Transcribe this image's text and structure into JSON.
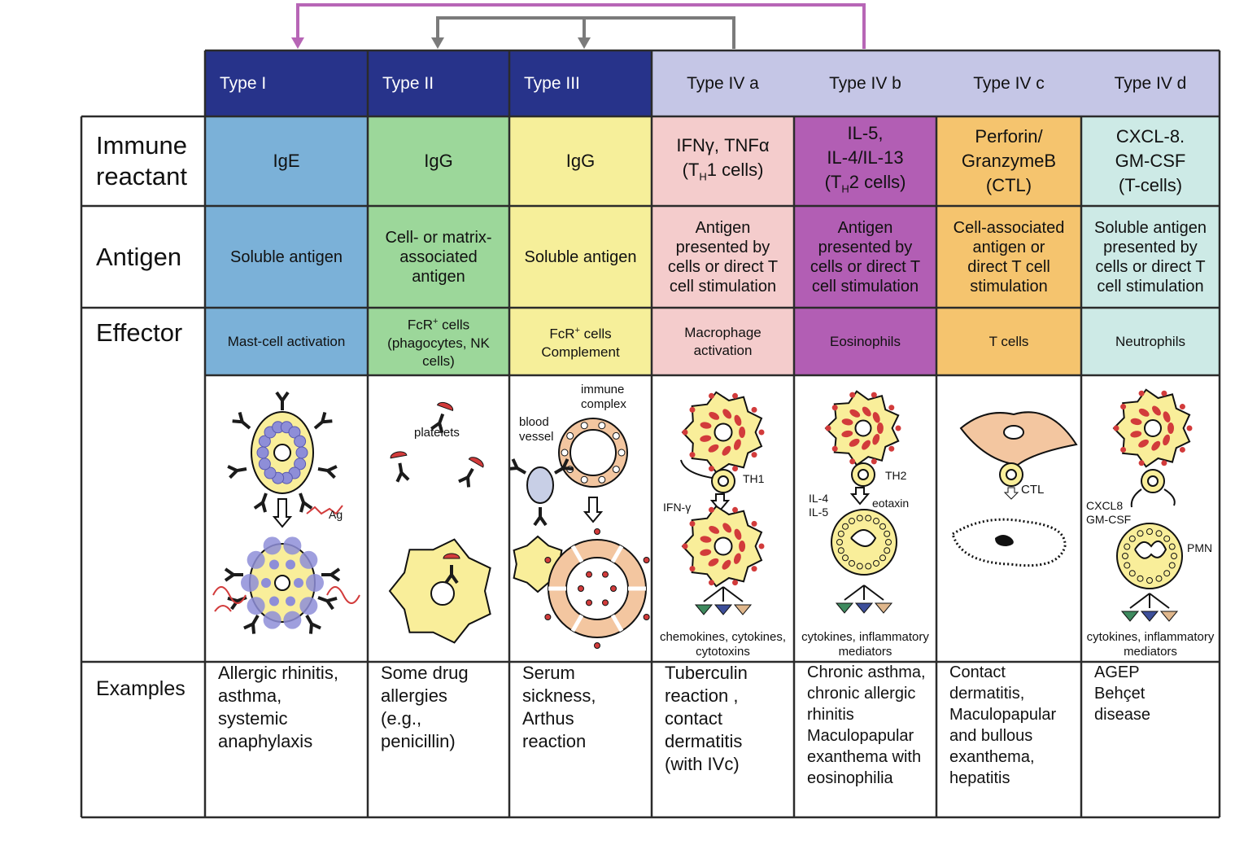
{
  "colors": {
    "type_dark": "#27338a",
    "type_light": "#c5c6e6",
    "arrow_purple": "#b766b6",
    "arrow_gray": "#7b7b7b",
    "ige": "#7bb1d8",
    "igg2": "#9cd79a",
    "igg3": "#f6ef9a",
    "iva": "#f4cccc",
    "ivb": "#b25eb4",
    "ivc": "#f5c46e",
    "ivd": "#cdeae6",
    "cell_fill": "#f9ee9a",
    "granule": "#8e8ed8",
    "red_dot": "#d23b3b",
    "peach": "#f3c6a0"
  },
  "types": [
    "Type I",
    "Type II",
    "Type III",
    "Type IV a",
    "Type IV b",
    "Type IV c",
    "Type IV d"
  ],
  "row_labels": {
    "reactant": "Immune\nreactant",
    "antigen": "Antigen",
    "effector": "Effector",
    "examples": "Examples"
  },
  "reactant": [
    "IgE",
    "IgG",
    "IgG",
    "IFNγ, TNFα\n(TH1 cells)",
    "IL-5,\nIL-4/IL-13\n(TH2 cells)",
    "Perforin/\nGranzymeB\n(CTL)",
    "CXCL-8.\nGM-CSF\n(T-cells)"
  ],
  "antigen": [
    "Soluble antigen",
    "Cell- or matrix-\nassociated\nantigen",
    "Soluble antigen",
    "Antigen\npresented by\ncells or direct T\ncell stimulation",
    "Antigen\npresented by\ncells or direct T\ncell stimulation",
    "Cell-associated\nantigen or\ndirect T cell\nstimulation",
    "Soluble antigen\npresented by\ncells or direct T\ncell stimulation"
  ],
  "effector": [
    "Mast-cell activation",
    "FcR+ cells\n(phagocytes, NK\ncells)",
    "FcR+ cells\nComplement",
    "Macrophage\nactivation",
    "Eosinophils",
    "T cells",
    "Neutrophils"
  ],
  "examples": [
    "Allergic rhinitis,\nasthma,\nsystemic\nanaphylaxis",
    "Some drug\nallergies\n(e.g.,\npenicillin)",
    "Serum\nsickness,\nArthus\nreaction",
    "Tuberculin\nreaction ,\ncontact\ndermatitis\n(with IVc)",
    "Chronic asthma,\nchronic allergic\nrhinitis\nMaculopapular\nexanthema with\neosinophilia",
    "Contact\ndermatitis,\nMaculopapular\nand bullous\nexanthema,\nhepatitis",
    "AGEP\nBehçet\ndisease"
  ],
  "illustration_labels": {
    "ag": "Ag",
    "platelets": "platelets",
    "blood_vessel": "blood\nvessel",
    "immune_complex": "immune\ncomplex",
    "th1": "TH1",
    "ifn": "IFN-γ",
    "th2": "TH2",
    "il4il5": "IL-4\nIL-5",
    "eotaxin": "eotaxin",
    "ctl": "CTL",
    "cxcl8": "CXCL8\nGM-CSF",
    "pmn": "PMN"
  },
  "captions": {
    "iva": "chemokines, cytokines,\ncytotoxins",
    "ivb": "cytokines, inflammatory\nmediators",
    "ivd": "cytokines, inflammatory\nmediators"
  }
}
